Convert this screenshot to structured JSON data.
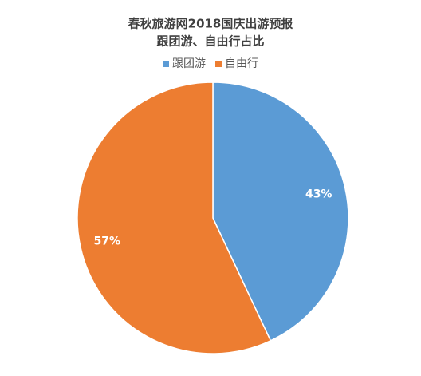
{
  "chart_data": {
    "type": "pie",
    "title": [
      "春秋旅游网2018国庆出游预报",
      "跟团游、自由行占比"
    ],
    "categories": [
      "跟团游",
      "自由行"
    ],
    "values": [
      43,
      57
    ],
    "value_labels": [
      "43%",
      "57%"
    ],
    "colors": [
      "#5b9bd5",
      "#ed7d31"
    ],
    "legend": "top"
  }
}
